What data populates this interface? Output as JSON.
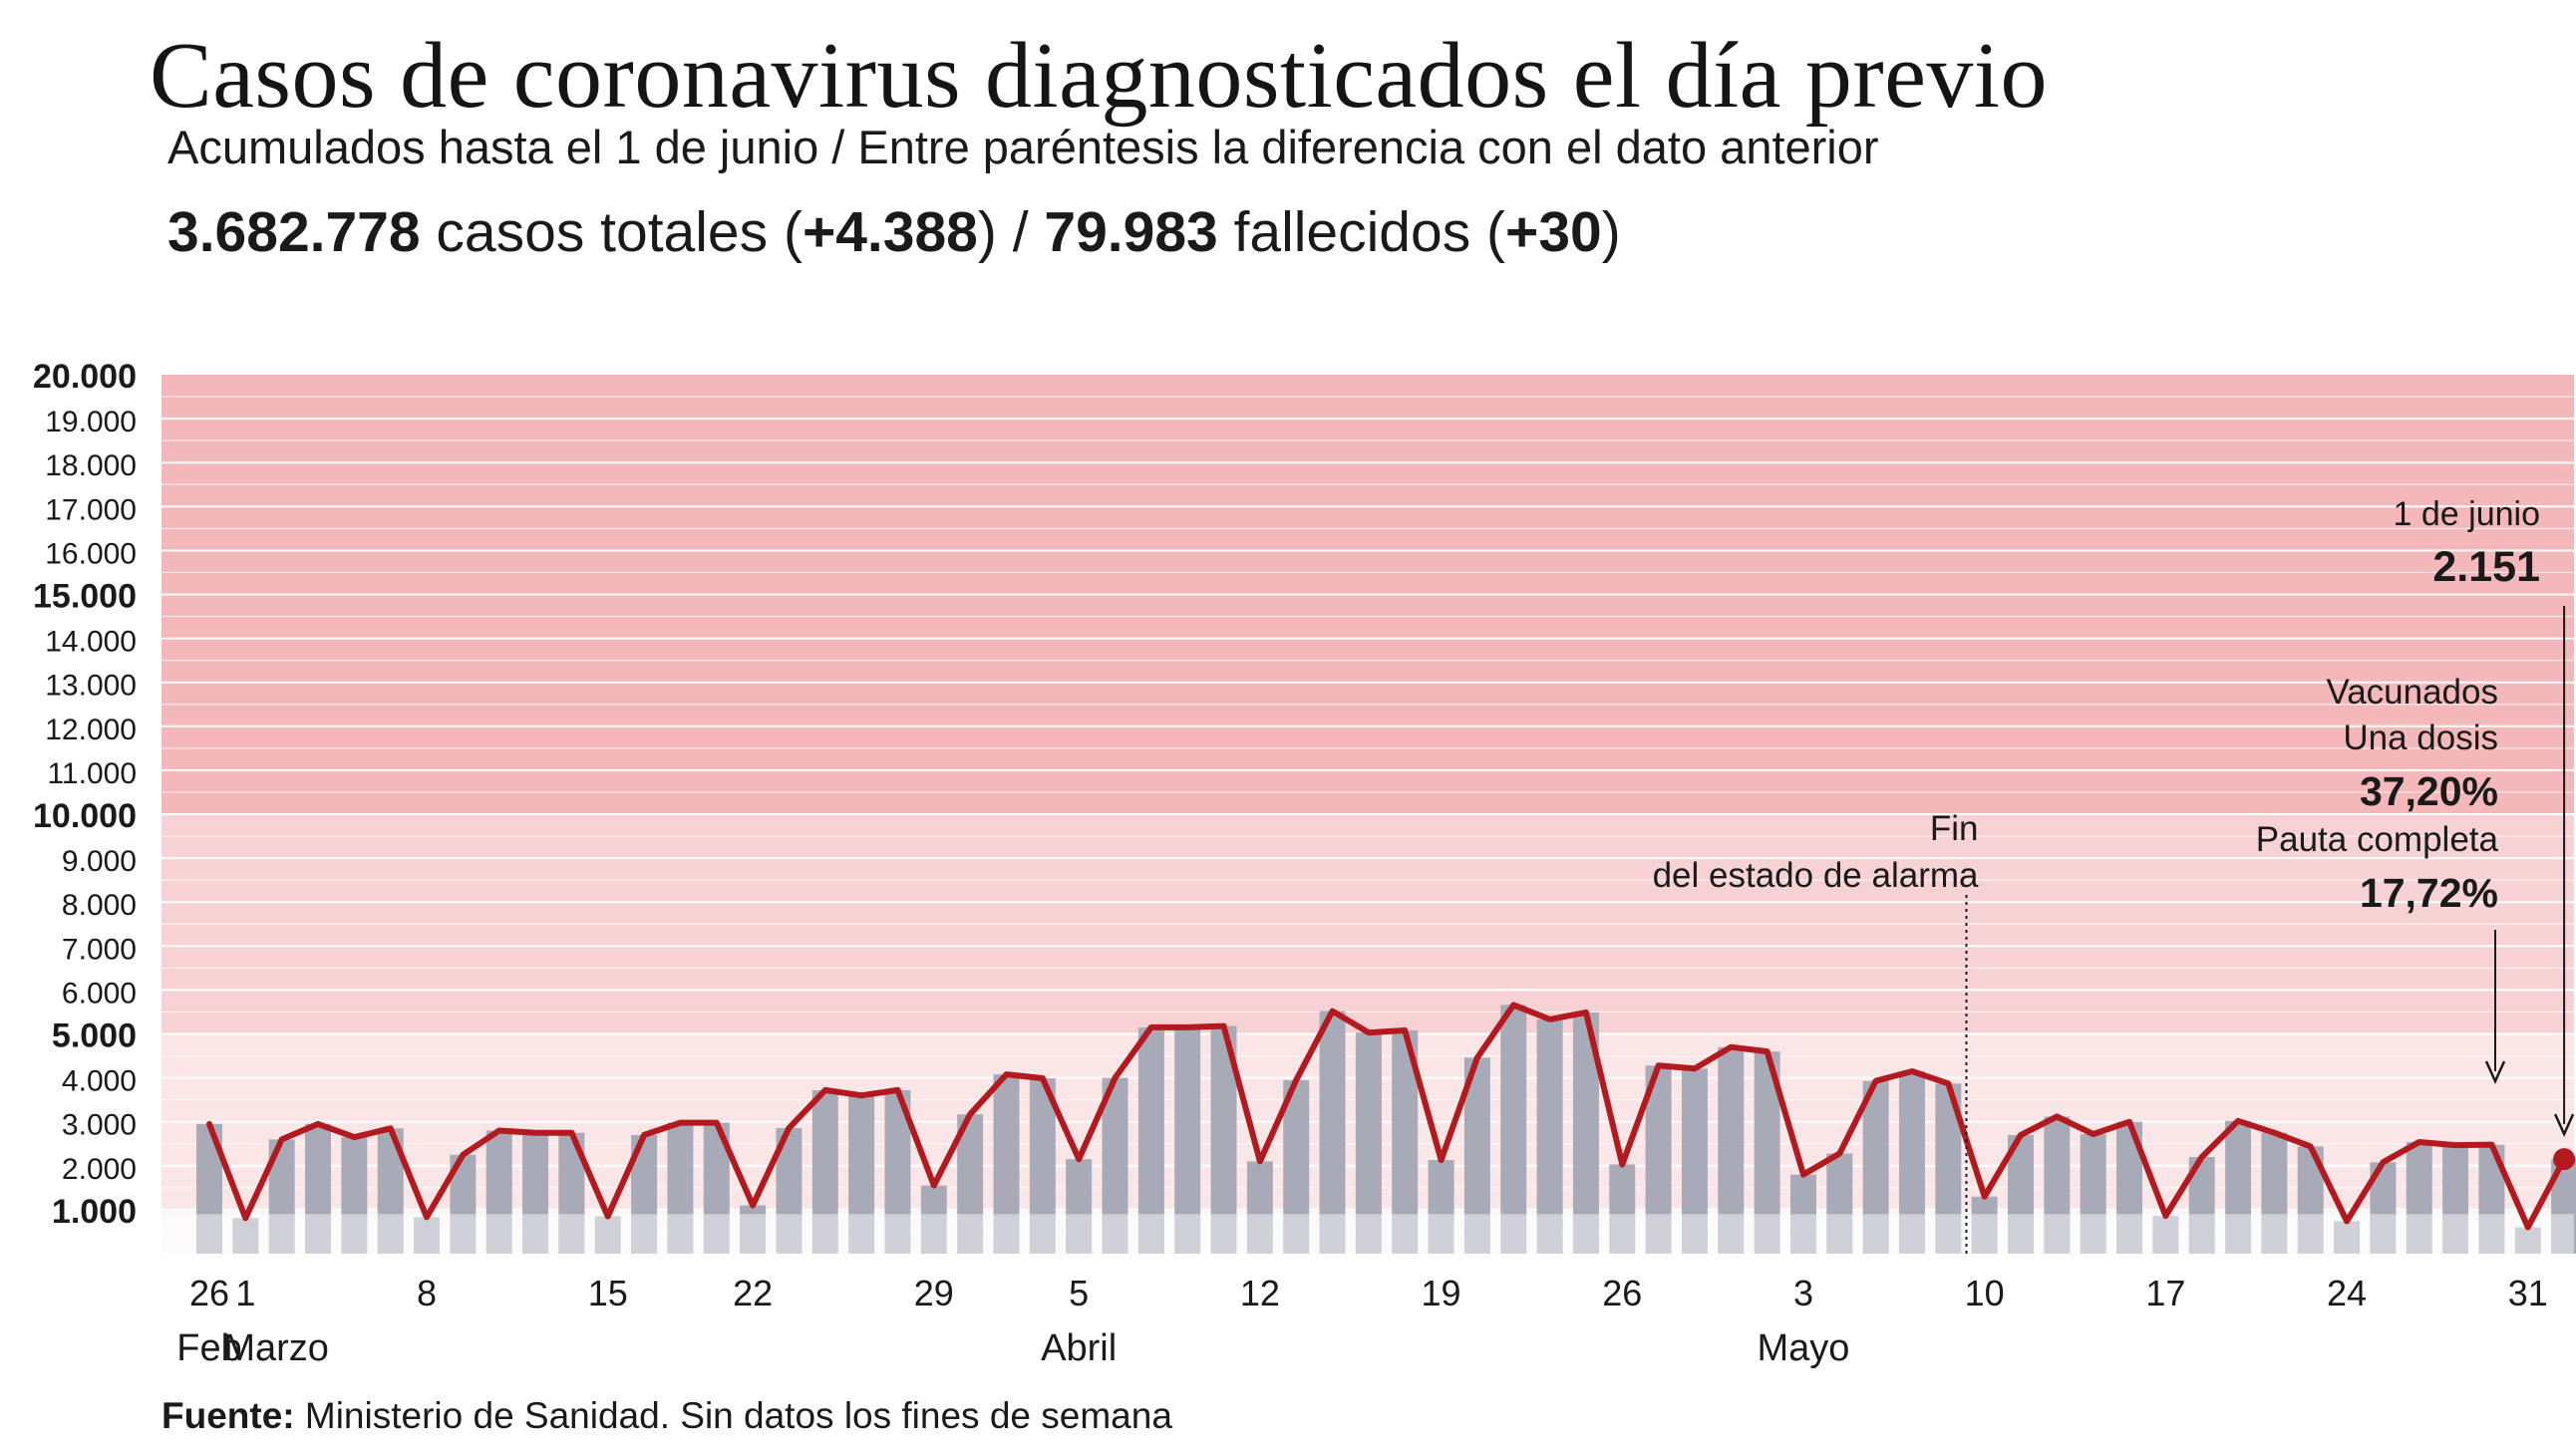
{
  "header": {
    "title": "Casos de coronavirus diagnosticados el día previo",
    "subtitle": "Acumulados hasta el 1 de junio / Entre paréntesis la diferencia con el dato anterior",
    "cases_total": "3.682.778",
    "cases_label": "casos totales",
    "cases_diff": "+4.388",
    "deaths_total": "79.983",
    "deaths_label": "fallecidos",
    "deaths_diff": "+30"
  },
  "footer": {
    "source_label": "Fuente:",
    "source_text": "Ministerio de Sanidad. Sin datos los fines de semana"
  },
  "colors": {
    "band_high": "#f4b8bb",
    "band_mid": "#f7d2d4",
    "band_low": "#fbe6e7",
    "bar": "#a9aab8",
    "bar_light": "#cfd3db",
    "line": "#b21a1f",
    "grid": "#ffffff"
  },
  "chart_data": {
    "type": "bar",
    "title": "Casos de coronavirus diagnosticados el día previo",
    "ylim": [
      0,
      20000
    ],
    "y_ticks": [
      {
        "value": 1000,
        "label": "1.000",
        "bold": true
      },
      {
        "value": 2000,
        "label": "2.000",
        "bold": false
      },
      {
        "value": 3000,
        "label": "3.000",
        "bold": false
      },
      {
        "value": 4000,
        "label": "4.000",
        "bold": false
      },
      {
        "value": 5000,
        "label": "5.000",
        "bold": true
      },
      {
        "value": 6000,
        "label": "6.000",
        "bold": false
      },
      {
        "value": 7000,
        "label": "7.000",
        "bold": false
      },
      {
        "value": 8000,
        "label": "8.000",
        "bold": false
      },
      {
        "value": 9000,
        "label": "9.000",
        "bold": false
      },
      {
        "value": 10000,
        "label": "10.000",
        "bold": true
      },
      {
        "value": 11000,
        "label": "11.000",
        "bold": false
      },
      {
        "value": 12000,
        "label": "12.000",
        "bold": false
      },
      {
        "value": 13000,
        "label": "13.000",
        "bold": false
      },
      {
        "value": 14000,
        "label": "14.000",
        "bold": false
      },
      {
        "value": 15000,
        "label": "15.000",
        "bold": true
      },
      {
        "value": 16000,
        "label": "16.000",
        "bold": false
      },
      {
        "value": 17000,
        "label": "17.000",
        "bold": false
      },
      {
        "value": 18000,
        "label": "18.000",
        "bold": false
      },
      {
        "value": 19000,
        "label": "19.000",
        "bold": false
      },
      {
        "value": 20000,
        "label": "20.000",
        "bold": true
      }
    ],
    "bands": [
      {
        "from": 0,
        "to": 5000,
        "level": "low"
      },
      {
        "from": 5000,
        "to": 10000,
        "level": "mid"
      },
      {
        "from": 10000,
        "to": 20000,
        "level": "high"
      }
    ],
    "series": [
      {
        "name": "Casos diagnosticados el día previo",
        "values": [
          2950,
          810,
          2600,
          2950,
          2650,
          2850,
          830,
          2250,
          2800,
          2750,
          2750,
          850,
          2700,
          2980,
          2980,
          1100,
          2860,
          3720,
          3600,
          3720,
          1550,
          3170,
          4080,
          3990,
          2150,
          4000,
          5150,
          5150,
          5180,
          2100,
          3950,
          5520,
          5030,
          5080,
          2130,
          4460,
          5660,
          5330,
          5490,
          2030,
          4280,
          4210,
          4700,
          4600,
          1800,
          2280,
          3930,
          4150,
          3870,
          1300,
          2700,
          3120,
          2720,
          3000,
          860,
          2200,
          3020,
          2750,
          2440,
          740,
          2080,
          2540,
          2470,
          2480,
          600,
          2151
        ]
      }
    ],
    "x_tick_labels": [
      {
        "index": 0,
        "label": "26"
      },
      {
        "index": 1,
        "label": "1"
      },
      {
        "index": 6,
        "label": "8"
      },
      {
        "index": 11,
        "label": "15"
      },
      {
        "index": 15,
        "label": "22"
      },
      {
        "index": 20,
        "label": "29"
      },
      {
        "index": 24,
        "label": "5"
      },
      {
        "index": 29,
        "label": "12"
      },
      {
        "index": 34,
        "label": "19"
      },
      {
        "index": 39,
        "label": "26"
      },
      {
        "index": 44,
        "label": "3"
      },
      {
        "index": 49,
        "label": "10"
      },
      {
        "index": 54,
        "label": "17"
      },
      {
        "index": 59,
        "label": "24"
      },
      {
        "index": 64,
        "label": "31"
      }
    ],
    "month_labels": [
      {
        "index": 0,
        "label": "Feb"
      },
      {
        "index": 1,
        "label": "Marzo"
      },
      {
        "index": 24,
        "label": "Abril"
      },
      {
        "index": 44,
        "label": "Mayo"
      }
    ],
    "annotations": {
      "alarm_end_line1": "Fin",
      "alarm_end_line2": "del estado de alarma",
      "alarm_end_between_index": 48,
      "last_date_label": "1 de junio",
      "last_value_label": "2.151",
      "vaccinated_label": "Vacunados",
      "one_dose_label": "Una dosis",
      "one_dose_value": "37,20%",
      "full_label": "Pauta completa",
      "full_value": "17,72%"
    }
  }
}
